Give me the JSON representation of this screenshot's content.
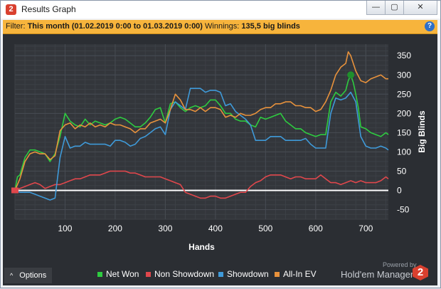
{
  "window": {
    "title": "Results Graph",
    "min_icon": "minimize-icon",
    "max_icon": "maximize-icon",
    "close_icon": "close-icon"
  },
  "filter": {
    "label": "Filter:",
    "period": "This month (01.02.2019 0:00 to 01.03.2019 0:00)",
    "winnings_label": "Winnings:",
    "winnings_value": "135,5 big blinds",
    "help_icon": "question-mark-icon"
  },
  "chart_data": {
    "type": "line",
    "xlabel": "Hands",
    "ylabel": "Big Blinds",
    "xlim": [
      0,
      745
    ],
    "ylim": [
      -75,
      380
    ],
    "x_ticks": [
      100,
      200,
      300,
      400,
      500,
      600,
      700
    ],
    "y_ticks": [
      -50,
      0,
      50,
      100,
      150,
      200,
      250,
      300,
      350
    ],
    "grid": true,
    "legend_position": "bottom",
    "series": [
      {
        "name": "Net Won",
        "color": "#2ecc40",
        "points": [
          [
            0,
            0
          ],
          [
            5,
            35
          ],
          [
            10,
            40
          ],
          [
            20,
            85
          ],
          [
            30,
            105
          ],
          [
            40,
            105
          ],
          [
            50,
            100
          ],
          [
            60,
            95
          ],
          [
            70,
            75
          ],
          [
            80,
            95
          ],
          [
            90,
            140
          ],
          [
            100,
            200
          ],
          [
            110,
            180
          ],
          [
            120,
            170
          ],
          [
            130,
            165
          ],
          [
            140,
            185
          ],
          [
            150,
            170
          ],
          [
            160,
            180
          ],
          [
            170,
            175
          ],
          [
            180,
            170
          ],
          [
            190,
            175
          ],
          [
            200,
            185
          ],
          [
            210,
            190
          ],
          [
            220,
            185
          ],
          [
            230,
            175
          ],
          [
            240,
            165
          ],
          [
            250,
            165
          ],
          [
            260,
            175
          ],
          [
            270,
            190
          ],
          [
            280,
            210
          ],
          [
            290,
            215
          ],
          [
            300,
            175
          ],
          [
            310,
            225
          ],
          [
            320,
            230
          ],
          [
            330,
            215
          ],
          [
            340,
            205
          ],
          [
            350,
            215
          ],
          [
            360,
            220
          ],
          [
            370,
            215
          ],
          [
            380,
            220
          ],
          [
            390,
            235
          ],
          [
            400,
            235
          ],
          [
            410,
            220
          ],
          [
            420,
            200
          ],
          [
            430,
            200
          ],
          [
            440,
            185
          ],
          [
            450,
            180
          ],
          [
            460,
            180
          ],
          [
            470,
            170
          ],
          [
            480,
            165
          ],
          [
            490,
            190
          ],
          [
            500,
            185
          ],
          [
            510,
            190
          ],
          [
            520,
            195
          ],
          [
            530,
            200
          ],
          [
            540,
            180
          ],
          [
            550,
            170
          ],
          [
            560,
            160
          ],
          [
            570,
            160
          ],
          [
            580,
            150
          ],
          [
            590,
            145
          ],
          [
            600,
            140
          ],
          [
            610,
            145
          ],
          [
            620,
            145
          ],
          [
            630,
            230
          ],
          [
            640,
            255
          ],
          [
            650,
            245
          ],
          [
            660,
            260
          ],
          [
            665,
            285
          ],
          [
            670,
            300
          ],
          [
            675,
            280
          ],
          [
            680,
            250
          ],
          [
            685,
            215
          ],
          [
            690,
            165
          ],
          [
            700,
            160
          ],
          [
            710,
            150
          ],
          [
            720,
            145
          ],
          [
            730,
            140
          ],
          [
            740,
            150
          ],
          [
            745,
            145
          ]
        ]
      },
      {
        "name": "Non Showdown",
        "color": "#e0474c",
        "points": [
          [
            0,
            0
          ],
          [
            10,
            5
          ],
          [
            20,
            10
          ],
          [
            30,
            15
          ],
          [
            40,
            20
          ],
          [
            50,
            15
          ],
          [
            60,
            5
          ],
          [
            70,
            10
          ],
          [
            80,
            15
          ],
          [
            90,
            15
          ],
          [
            100,
            20
          ],
          [
            110,
            25
          ],
          [
            120,
            30
          ],
          [
            130,
            30
          ],
          [
            140,
            35
          ],
          [
            150,
            40
          ],
          [
            160,
            40
          ],
          [
            170,
            40
          ],
          [
            180,
            45
          ],
          [
            190,
            50
          ],
          [
            200,
            50
          ],
          [
            210,
            50
          ],
          [
            220,
            50
          ],
          [
            230,
            45
          ],
          [
            240,
            45
          ],
          [
            250,
            40
          ],
          [
            260,
            35
          ],
          [
            270,
            35
          ],
          [
            280,
            35
          ],
          [
            290,
            35
          ],
          [
            300,
            30
          ],
          [
            310,
            25
          ],
          [
            320,
            20
          ],
          [
            330,
            15
          ],
          [
            340,
            -5
          ],
          [
            350,
            -10
          ],
          [
            360,
            -15
          ],
          [
            370,
            -20
          ],
          [
            380,
            -20
          ],
          [
            390,
            -15
          ],
          [
            400,
            -15
          ],
          [
            410,
            -20
          ],
          [
            420,
            -20
          ],
          [
            430,
            -15
          ],
          [
            440,
            -10
          ],
          [
            450,
            -5
          ],
          [
            460,
            -5
          ],
          [
            470,
            10
          ],
          [
            480,
            20
          ],
          [
            490,
            25
          ],
          [
            500,
            35
          ],
          [
            510,
            40
          ],
          [
            520,
            40
          ],
          [
            530,
            40
          ],
          [
            540,
            35
          ],
          [
            550,
            30
          ],
          [
            560,
            35
          ],
          [
            570,
            35
          ],
          [
            580,
            30
          ],
          [
            590,
            30
          ],
          [
            600,
            30
          ],
          [
            610,
            40
          ],
          [
            620,
            30
          ],
          [
            630,
            20
          ],
          [
            640,
            20
          ],
          [
            650,
            15
          ],
          [
            660,
            20
          ],
          [
            670,
            25
          ],
          [
            680,
            20
          ],
          [
            690,
            25
          ],
          [
            700,
            20
          ],
          [
            710,
            20
          ],
          [
            720,
            20
          ],
          [
            730,
            25
          ],
          [
            740,
            35
          ],
          [
            745,
            30
          ]
        ]
      },
      {
        "name": "Showdown",
        "color": "#3f9ad9",
        "points": [
          [
            0,
            0
          ],
          [
            10,
            -5
          ],
          [
            20,
            -5
          ],
          [
            30,
            -5
          ],
          [
            40,
            -10
          ],
          [
            50,
            -15
          ],
          [
            60,
            -20
          ],
          [
            70,
            -25
          ],
          [
            80,
            -20
          ],
          [
            90,
            85
          ],
          [
            100,
            140
          ],
          [
            110,
            110
          ],
          [
            120,
            115
          ],
          [
            130,
            115
          ],
          [
            140,
            125
          ],
          [
            150,
            120
          ],
          [
            160,
            120
          ],
          [
            170,
            120
          ],
          [
            180,
            120
          ],
          [
            190,
            115
          ],
          [
            200,
            130
          ],
          [
            210,
            130
          ],
          [
            220,
            125
          ],
          [
            230,
            115
          ],
          [
            240,
            120
          ],
          [
            250,
            135
          ],
          [
            260,
            140
          ],
          [
            270,
            150
          ],
          [
            280,
            160
          ],
          [
            290,
            165
          ],
          [
            300,
            145
          ],
          [
            310,
            210
          ],
          [
            320,
            230
          ],
          [
            330,
            220
          ],
          [
            340,
            210
          ],
          [
            350,
            265
          ],
          [
            360,
            265
          ],
          [
            370,
            265
          ],
          [
            380,
            255
          ],
          [
            390,
            260
          ],
          [
            400,
            260
          ],
          [
            410,
            255
          ],
          [
            420,
            220
          ],
          [
            430,
            225
          ],
          [
            440,
            205
          ],
          [
            450,
            195
          ],
          [
            460,
            185
          ],
          [
            470,
            170
          ],
          [
            480,
            130
          ],
          [
            490,
            130
          ],
          [
            500,
            130
          ],
          [
            510,
            140
          ],
          [
            520,
            140
          ],
          [
            530,
            140
          ],
          [
            540,
            130
          ],
          [
            550,
            130
          ],
          [
            560,
            130
          ],
          [
            570,
            130
          ],
          [
            580,
            135
          ],
          [
            590,
            120
          ],
          [
            600,
            110
          ],
          [
            610,
            110
          ],
          [
            620,
            110
          ],
          [
            630,
            200
          ],
          [
            640,
            240
          ],
          [
            650,
            235
          ],
          [
            660,
            240
          ],
          [
            670,
            255
          ],
          [
            680,
            230
          ],
          [
            690,
            140
          ],
          [
            700,
            115
          ],
          [
            710,
            110
          ],
          [
            720,
            110
          ],
          [
            730,
            115
          ],
          [
            740,
            110
          ],
          [
            745,
            105
          ]
        ]
      },
      {
        "name": "All-In EV",
        "color": "#e8923c",
        "points": [
          [
            0,
            0
          ],
          [
            10,
            30
          ],
          [
            20,
            75
          ],
          [
            30,
            95
          ],
          [
            40,
            100
          ],
          [
            50,
            95
          ],
          [
            60,
            95
          ],
          [
            70,
            80
          ],
          [
            80,
            90
          ],
          [
            90,
            155
          ],
          [
            100,
            170
          ],
          [
            110,
            175
          ],
          [
            120,
            160
          ],
          [
            130,
            170
          ],
          [
            140,
            165
          ],
          [
            150,
            175
          ],
          [
            160,
            165
          ],
          [
            170,
            170
          ],
          [
            180,
            165
          ],
          [
            190,
            175
          ],
          [
            200,
            170
          ],
          [
            210,
            170
          ],
          [
            220,
            165
          ],
          [
            230,
            160
          ],
          [
            240,
            150
          ],
          [
            250,
            160
          ],
          [
            260,
            160
          ],
          [
            270,
            175
          ],
          [
            280,
            180
          ],
          [
            290,
            185
          ],
          [
            300,
            175
          ],
          [
            310,
            210
          ],
          [
            320,
            250
          ],
          [
            330,
            235
          ],
          [
            340,
            210
          ],
          [
            350,
            210
          ],
          [
            360,
            205
          ],
          [
            370,
            215
          ],
          [
            380,
            205
          ],
          [
            390,
            215
          ],
          [
            400,
            215
          ],
          [
            410,
            210
          ],
          [
            420,
            190
          ],
          [
            430,
            195
          ],
          [
            440,
            190
          ],
          [
            450,
            200
          ],
          [
            460,
            195
          ],
          [
            470,
            195
          ],
          [
            480,
            200
          ],
          [
            490,
            210
          ],
          [
            500,
            215
          ],
          [
            510,
            215
          ],
          [
            520,
            225
          ],
          [
            530,
            225
          ],
          [
            540,
            230
          ],
          [
            550,
            230
          ],
          [
            560,
            220
          ],
          [
            570,
            220
          ],
          [
            580,
            215
          ],
          [
            590,
            215
          ],
          [
            600,
            205
          ],
          [
            610,
            210
          ],
          [
            620,
            230
          ],
          [
            630,
            260
          ],
          [
            640,
            300
          ],
          [
            650,
            320
          ],
          [
            660,
            330
          ],
          [
            665,
            360
          ],
          [
            670,
            350
          ],
          [
            680,
            310
          ],
          [
            690,
            285
          ],
          [
            700,
            280
          ],
          [
            710,
            290
          ],
          [
            720,
            295
          ],
          [
            730,
            300
          ],
          [
            740,
            290
          ],
          [
            745,
            290
          ]
        ]
      }
    ]
  },
  "options": {
    "label": "Options",
    "caret": "^"
  },
  "legend": {
    "items": [
      {
        "label": "Net Won",
        "color": "#2ecc40"
      },
      {
        "label": "Non Showdown",
        "color": "#e0474c"
      },
      {
        "label": "Showdown",
        "color": "#3f9ad9"
      },
      {
        "label": "All-In EV",
        "color": "#e8923c"
      }
    ]
  },
  "branding": {
    "powered_by": "Powered by",
    "name": "Hold'em Manager",
    "logo_text": "2"
  }
}
